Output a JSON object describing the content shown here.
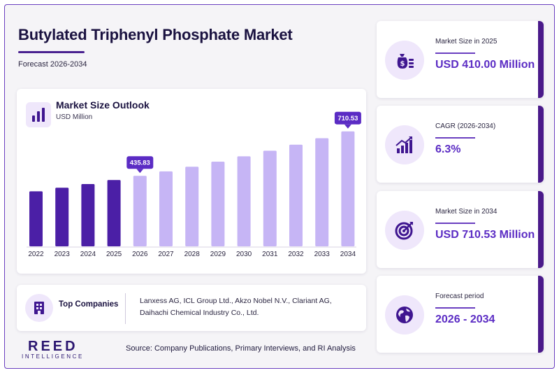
{
  "header": {
    "title": "Butylated Triphenyl Phosphate Market",
    "forecast": "Forecast 2026-2034"
  },
  "chart_data": {
    "type": "bar",
    "title": "Market Size Outlook",
    "ylabel": "USD Million",
    "categories": [
      "2022",
      "2023",
      "2024",
      "2025",
      "2026",
      "2027",
      "2028",
      "2029",
      "2030",
      "2031",
      "2032",
      "2033",
      "2034"
    ],
    "values": [
      340,
      362,
      385,
      410,
      435.83,
      463,
      492,
      523,
      556,
      591,
      628,
      668,
      710.53
    ],
    "highlighted": [
      {
        "index": 4,
        "label": "435.83"
      },
      {
        "index": 12,
        "label": "710.53"
      }
    ],
    "ylim": [
      0,
      800
    ],
    "grid": false,
    "colors": {
      "historical": "#4b1fa6",
      "forecast": "#c6b5f5",
      "callout": "#5b2cc4"
    }
  },
  "companies": {
    "title": "Top Companies",
    "text": "Lanxess AG, ICL Group Ltd., Akzo Nobel N.V., Clariant AG, Daihachi Chemical Industry Co., Ltd."
  },
  "stats": [
    {
      "label": "Market Size in 2025",
      "value": "USD 410.00 Million",
      "icon": "money-bag-icon"
    },
    {
      "label": "CAGR (2026-2034)",
      "value": "6.3%",
      "icon": "growth-chart-icon"
    },
    {
      "label": "Market Size in 2034",
      "value": "USD 710.53 Million",
      "icon": "target-icon"
    },
    {
      "label": "Forecast period",
      "value": "2026 - 2034",
      "icon": "globe-icon"
    }
  ],
  "logo": {
    "main": "REED",
    "sub": "INTELLIGENCE"
  },
  "source": "Source: Company Publications, Primary Interviews, and RI Analysis"
}
